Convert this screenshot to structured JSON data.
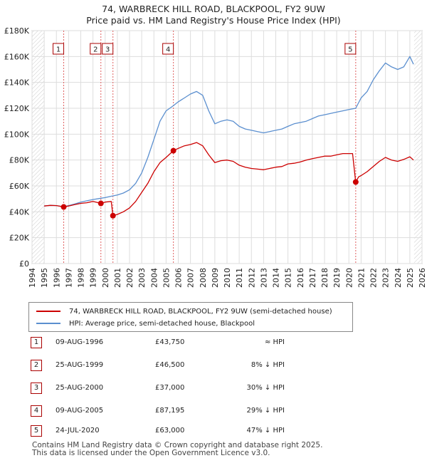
{
  "chart_data": {
    "type": "line",
    "title": "74, WARBRECK HILL ROAD, BLACKPOOL, FY2 9UW",
    "subtitle": "Price paid vs. HM Land Registry's House Price Index (HPI)",
    "xlabel": "",
    "ylabel": "",
    "xlim": [
      1994,
      2026
    ],
    "ylim": [
      0,
      180000
    ],
    "x_ticks": [
      "1994",
      "1995",
      "1996",
      "1997",
      "1998",
      "1999",
      "2000",
      "2001",
      "2002",
      "2003",
      "2004",
      "2005",
      "2006",
      "2007",
      "2008",
      "2009",
      "2010",
      "2011",
      "2012",
      "2013",
      "2014",
      "2015",
      "2016",
      "2017",
      "2018",
      "2019",
      "2020",
      "2021",
      "2022",
      "2023",
      "2024",
      "2025",
      "2026"
    ],
    "y_ticks": [
      {
        "value": 0,
        "label": "£0"
      },
      {
        "value": 20000,
        "label": "£20K"
      },
      {
        "value": 40000,
        "label": "£40K"
      },
      {
        "value": 60000,
        "label": "£60K"
      },
      {
        "value": 80000,
        "label": "£80K"
      },
      {
        "value": 100000,
        "label": "£100K"
      },
      {
        "value": 120000,
        "label": "£120K"
      },
      {
        "value": 140000,
        "label": "£140K"
      },
      {
        "value": 160000,
        "label": "£160K"
      },
      {
        "value": 180000,
        "label": "£180K"
      }
    ],
    "series": [
      {
        "name": "74, WARBRECK HILL ROAD, BLACKPOOL, FY2 9UW (semi-detached house)",
        "color": "#cc0000",
        "x": [
          1995.0,
          1995.5,
          1996.0,
          1996.6,
          1997.0,
          1997.5,
          1998.0,
          1998.5,
          1999.0,
          1999.65,
          2000.0,
          2000.5,
          2000.64,
          2001.0,
          2001.5,
          2002.0,
          2002.5,
          2003.0,
          2003.5,
          2004.0,
          2004.5,
          2005.0,
          2005.6,
          2006.0,
          2006.5,
          2007.0,
          2007.5,
          2008.0,
          2008.5,
          2009.0,
          2009.5,
          2010.0,
          2010.5,
          2011.0,
          2011.5,
          2012.0,
          2012.5,
          2013.0,
          2013.5,
          2014.0,
          2014.5,
          2015.0,
          2015.5,
          2016.0,
          2016.5,
          2017.0,
          2017.5,
          2018.0,
          2018.5,
          2019.0,
          2019.5,
          2020.0,
          2020.3,
          2020.56,
          2020.8,
          2021.0,
          2021.5,
          2022.0,
          2022.5,
          2023.0,
          2023.5,
          2024.0,
          2024.5,
          2025.0,
          2025.3
        ],
        "y": [
          44500,
          45000,
          44800,
          43750,
          44500,
          45500,
          46500,
          47000,
          48000,
          46500,
          47500,
          48000,
          37000,
          38000,
          40000,
          43000,
          48000,
          55000,
          62000,
          71000,
          78000,
          82000,
          87195,
          89000,
          91000,
          92000,
          93500,
          91000,
          84000,
          78000,
          79500,
          80000,
          79000,
          76000,
          74500,
          73500,
          73000,
          72500,
          73500,
          74500,
          75000,
          77000,
          77500,
          78500,
          80000,
          81000,
          82000,
          83000,
          83000,
          84000,
          85000,
          85000,
          85000,
          63000,
          67000,
          68000,
          71000,
          75000,
          79000,
          82000,
          80000,
          79000,
          80500,
          82500,
          80000
        ]
      },
      {
        "name": "HPI: Average price, semi-detached house, Blackpool",
        "color": "#5b8fcf",
        "x": [
          1995.0,
          1995.5,
          1996.0,
          1996.6,
          1997.0,
          1997.5,
          1998.0,
          1998.5,
          1999.0,
          1999.65,
          2000.0,
          2000.5,
          2001.0,
          2001.5,
          2002.0,
          2002.5,
          2003.0,
          2003.5,
          2004.0,
          2004.5,
          2005.0,
          2005.6,
          2006.0,
          2006.5,
          2007.0,
          2007.5,
          2008.0,
          2008.5,
          2009.0,
          2009.5,
          2010.0,
          2010.5,
          2011.0,
          2011.5,
          2012.0,
          2012.5,
          2013.0,
          2013.5,
          2014.0,
          2014.5,
          2015.0,
          2015.5,
          2016.0,
          2016.5,
          2017.0,
          2017.5,
          2018.0,
          2018.5,
          2019.0,
          2019.5,
          2020.0,
          2020.56,
          2021.0,
          2021.5,
          2022.0,
          2022.5,
          2023.0,
          2023.5,
          2024.0,
          2024.5,
          2025.0,
          2025.3
        ],
        "y": [
          44500,
          45000,
          44800,
          44000,
          44800,
          46000,
          47500,
          48500,
          49500,
          50500,
          51000,
          52000,
          53000,
          54500,
          57000,
          62000,
          70000,
          82000,
          96000,
          110000,
          118000,
          122000,
          125000,
          128000,
          131000,
          133000,
          130000,
          118000,
          108000,
          110000,
          111000,
          110000,
          106000,
          104000,
          103000,
          102000,
          101000,
          102000,
          103000,
          104000,
          106000,
          108000,
          109000,
          110000,
          112000,
          114000,
          115000,
          116000,
          117000,
          118000,
          119000,
          120000,
          128000,
          133000,
          142000,
          149000,
          155000,
          152000,
          150000,
          152000,
          160000,
          154000
        ]
      }
    ],
    "sales": [
      {
        "id": "1",
        "x": 1996.6,
        "y": 43750
      },
      {
        "id": "2",
        "x": 1999.65,
        "y": 46500
      },
      {
        "id": "3",
        "x": 2000.64,
        "y": 37000
      },
      {
        "id": "4",
        "x": 2005.6,
        "y": 87195
      },
      {
        "id": "5",
        "x": 2020.56,
        "y": 63000
      }
    ],
    "colors": {
      "grid": "#dddddd",
      "plot_bg": "#eef3fb",
      "hatch": "#cccccc",
      "marker_border": "#aa0000"
    }
  },
  "legend": {
    "property_label": "74, WARBRECK HILL ROAD, BLACKPOOL, FY2 9UW (semi-detached house)",
    "hpi_label": "HPI: Average price, semi-detached house, Blackpool"
  },
  "transactions": [
    {
      "num": "1",
      "date": "09-AUG-1996",
      "price": "£43,750",
      "hpi": "≈ HPI"
    },
    {
      "num": "2",
      "date": "25-AUG-1999",
      "price": "£46,500",
      "hpi": "8% ↓ HPI"
    },
    {
      "num": "3",
      "date": "25-AUG-2000",
      "price": "£37,000",
      "hpi": "30% ↓ HPI"
    },
    {
      "num": "4",
      "date": "09-AUG-2005",
      "price": "£87,195",
      "hpi": "29% ↓ HPI"
    },
    {
      "num": "5",
      "date": "24-JUL-2020",
      "price": "£63,000",
      "hpi": "47% ↓ HPI"
    }
  ],
  "footer": {
    "line1": "Contains HM Land Registry data © Crown copyright and database right 2025.",
    "line2": "This data is licensed under the Open Government Licence v3.0."
  }
}
